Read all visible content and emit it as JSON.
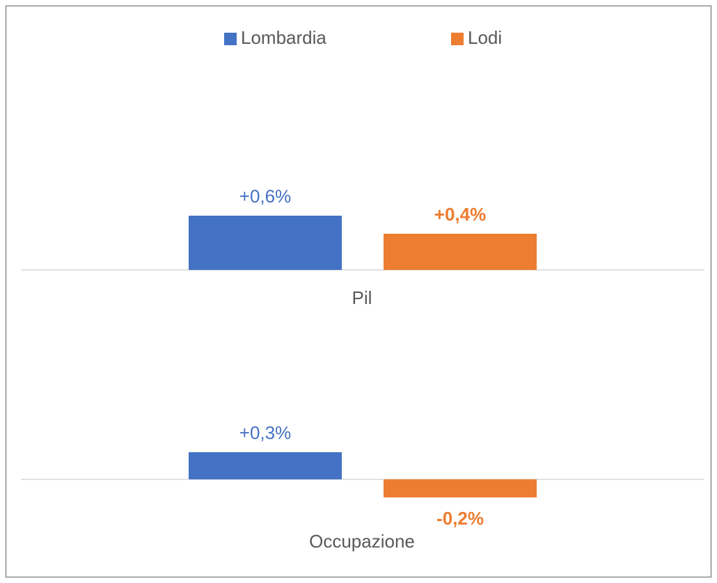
{
  "chart_data": {
    "type": "bar",
    "categories": [
      "Pil",
      "Occupazione"
    ],
    "series": [
      {
        "name": "Lombardia",
        "color": "#4472c4",
        "values": [
          0.6,
          0.3
        ],
        "value_labels": [
          "+0,6%",
          "+0,3%"
        ]
      },
      {
        "name": "Lodi",
        "color": "#ed7d31",
        "values": [
          0.4,
          -0.2
        ],
        "value_labels": [
          "+0,4%",
          "-0,2%"
        ]
      }
    ],
    "legend": "top"
  }
}
